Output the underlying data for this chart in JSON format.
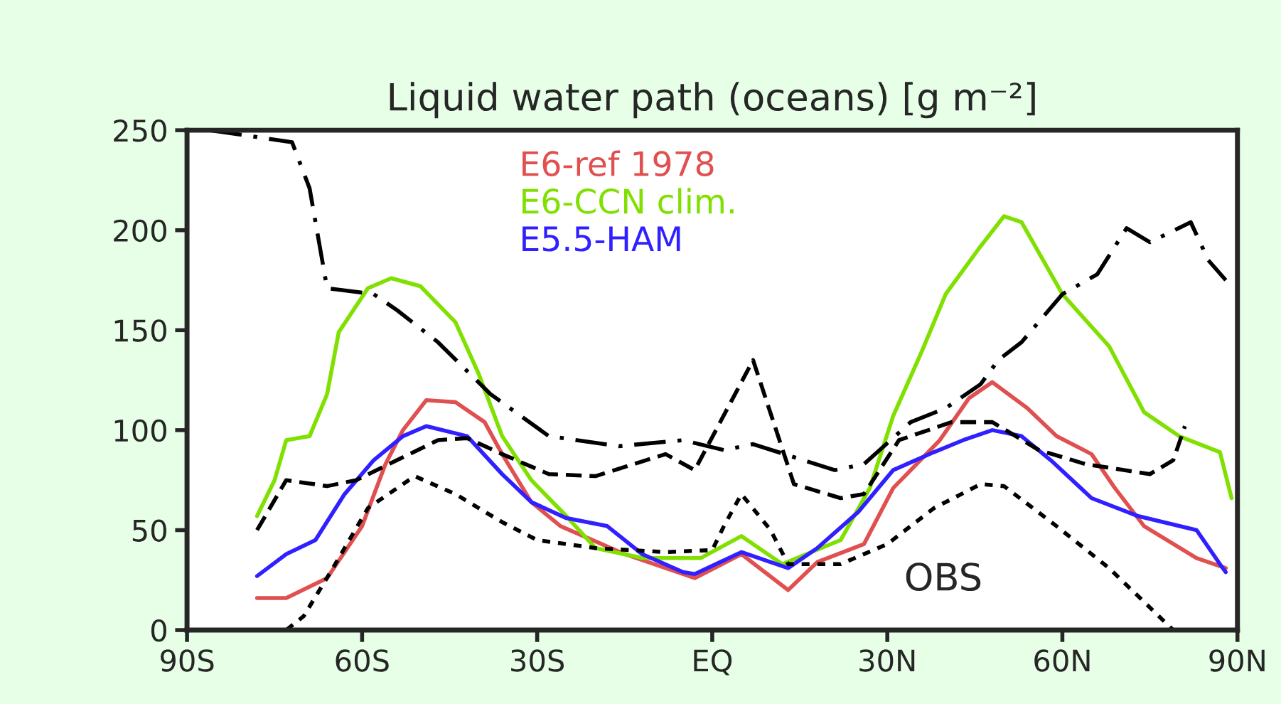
{
  "chart_data": {
    "type": "line",
    "title": "Liquid water path (oceans) [g m⁻²]",
    "xlim": [
      -90,
      90
    ],
    "ylim": [
      0,
      250
    ],
    "xticks": [
      {
        "value": -90,
        "label": "90S"
      },
      {
        "value": -60,
        "label": "60S"
      },
      {
        "value": -30,
        "label": "30S"
      },
      {
        "value": 0,
        "label": "EQ"
      },
      {
        "value": 30,
        "label": "30N"
      },
      {
        "value": 60,
        "label": "60N"
      },
      {
        "value": 90,
        "label": "90N"
      }
    ],
    "yticks": [
      0,
      50,
      100,
      150,
      200,
      250
    ],
    "grid": false,
    "legend": "top",
    "marker": "none",
    "annotations": [
      "OBS"
    ],
    "series": [
      {
        "name": "E6-ref 1978",
        "color": "#e05050",
        "line_style": "solid",
        "x": [
          -78,
          -73,
          -66,
          -60,
          -56,
          -53,
          -49,
          -44,
          -39,
          -36,
          -31,
          -26,
          -15,
          -3,
          5,
          13,
          18,
          26,
          31,
          39,
          44,
          48,
          54,
          59,
          65,
          69,
          74,
          83,
          88
        ],
        "values": [
          16,
          16,
          26,
          52,
          83,
          100,
          115,
          114,
          104,
          88,
          64,
          52,
          38,
          26,
          38,
          20,
          34,
          43,
          71,
          95,
          116,
          124,
          111,
          97,
          88,
          71,
          52,
          36,
          31
        ]
      },
      {
        "name": "E6-CCN clim.",
        "color": "#80e000",
        "line_style": "solid",
        "x": [
          -78,
          -75,
          -73,
          -69,
          -66,
          -64,
          -59,
          -55,
          -50,
          -44,
          -40,
          -36,
          -31,
          -25,
          -20,
          -12,
          -2,
          5,
          12,
          22,
          27,
          31,
          36,
          40,
          46,
          50,
          53,
          60,
          68,
          74,
          80,
          87,
          89
        ],
        "values": [
          57,
          75,
          95,
          97,
          118,
          149,
          171,
          176,
          172,
          154,
          128,
          97,
          75,
          57,
          41,
          36,
          36,
          47,
          33,
          45,
          71,
          107,
          140,
          168,
          192,
          207,
          204,
          168,
          142,
          109,
          97,
          89,
          66
        ]
      },
      {
        "name": "E5.5-HAM",
        "color": "#3020ff",
        "line_style": "solid",
        "x": [
          -78,
          -73,
          -68,
          -63,
          -58,
          -53,
          -49,
          -42,
          -36,
          -31,
          -25,
          -18,
          -12,
          -5,
          -3,
          5,
          13,
          18,
          25,
          31,
          38,
          43,
          48,
          53,
          58,
          65,
          73,
          83,
          87,
          88
        ],
        "values": [
          27,
          38,
          45,
          68,
          85,
          97,
          102,
          97,
          78,
          64,
          56,
          52,
          38,
          29,
          28,
          39,
          31,
          41,
          59,
          80,
          89,
          95,
          100,
          97,
          85,
          66,
          57,
          50,
          33,
          29
        ]
      },
      {
        "color": "#000000",
        "line_style": "dashdot",
        "x": [
          -86,
          -72,
          -69,
          -66,
          -58,
          -54,
          -47,
          -38,
          -28,
          -16,
          -5,
          2,
          7,
          21,
          26,
          34,
          40,
          46,
          49,
          53,
          60,
          66,
          71,
          75,
          82,
          85,
          88
        ],
        "values": [
          250,
          244,
          221,
          171,
          168,
          160,
          144,
          118,
          97,
          92,
          95,
          90,
          93,
          80,
          83,
          104,
          111,
          123,
          135,
          144,
          168,
          178,
          201,
          194,
          204,
          185,
          175
        ]
      },
      {
        "color": "#000000",
        "line_style": "dashed",
        "x": [
          -78,
          -73,
          -66,
          -61,
          -54,
          -47,
          -42,
          -36,
          -28,
          -20,
          -8,
          -3,
          7,
          14,
          22,
          26,
          32,
          41,
          48,
          56,
          64,
          75,
          79,
          81
        ],
        "values": [
          50,
          75,
          72,
          75,
          85,
          95,
          96,
          88,
          78,
          77,
          88,
          80,
          135,
          73,
          66,
          68,
          95,
          104,
          104,
          90,
          83,
          78,
          85,
          102
        ]
      },
      {
        "color": "#000000",
        "line_style": "dotted",
        "x": [
          -81,
          -73,
          -70,
          -65,
          -59,
          -51,
          -44,
          -36,
          -30,
          -20,
          -8,
          0,
          2,
          5,
          10,
          13,
          22,
          30,
          38,
          46,
          50,
          59,
          68,
          79
        ],
        "values": [
          0,
          0,
          7,
          31,
          61,
          77,
          68,
          54,
          45,
          41,
          39,
          40,
          52,
          68,
          50,
          33,
          33,
          43,
          61,
          73,
          72,
          52,
          31,
          0
        ]
      }
    ]
  }
}
